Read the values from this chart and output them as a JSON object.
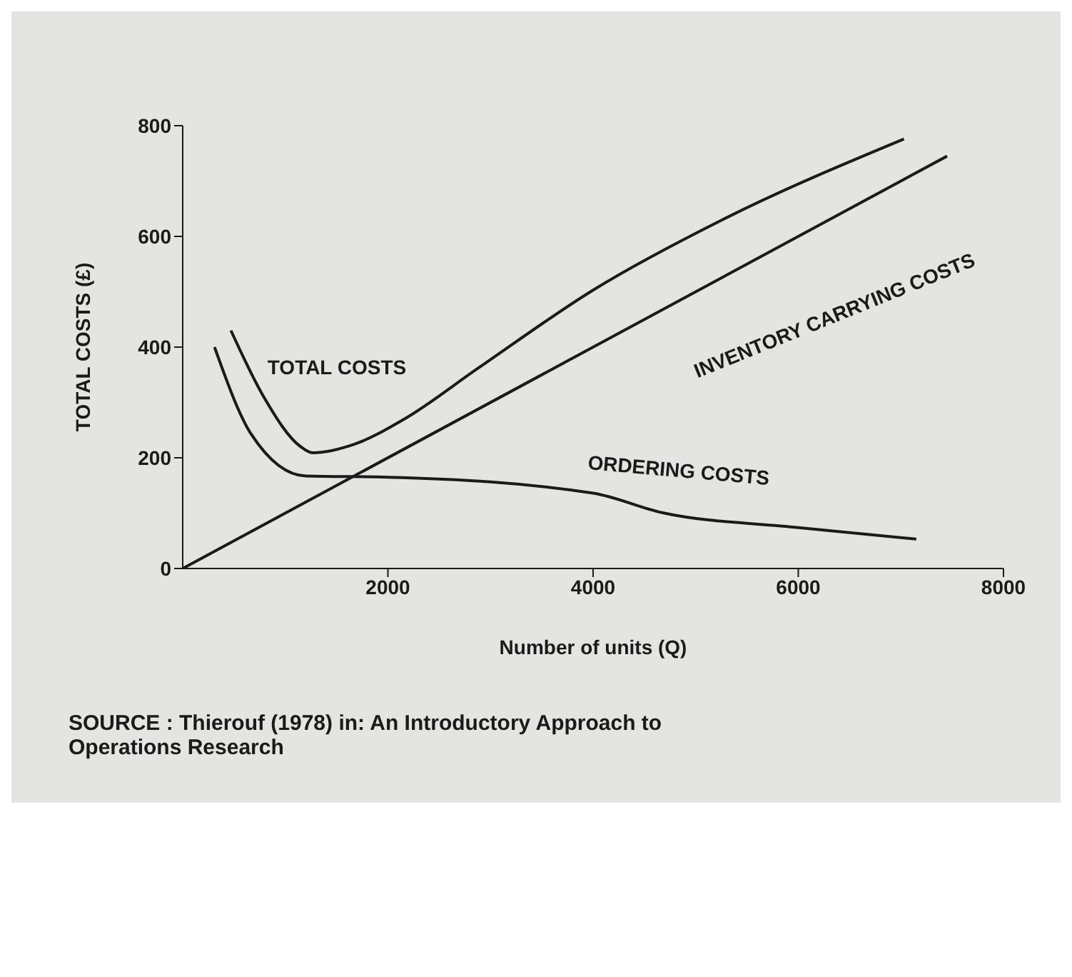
{
  "chart_data": {
    "type": "line",
    "xlabel": "Number of units (Q)",
    "ylabel": "TOTAL COSTS (£)",
    "xlim": [
      0,
      8000
    ],
    "ylim": [
      0,
      800
    ],
    "xticks": [
      2000,
      4000,
      6000,
      8000
    ],
    "yticks": [
      0,
      200,
      400,
      600,
      800
    ],
    "grid": false,
    "legend": false,
    "marker": "none",
    "line_style": "solid",
    "series": [
      {
        "color": "#1a1a1a",
        "x": [
          0,
          7450
        ],
        "values": [
          0,
          745
        ]
      },
      {
        "color": "#1a1a1a",
        "x": [
          310,
          670,
          1200,
          2000,
          4000,
          4670,
          6000,
          7150
        ],
        "values": [
          400,
          242,
          167,
          165,
          136,
          101,
          74,
          53
        ]
      },
      {
        "color": "#1a1a1a",
        "x": [
          470,
          790,
          1150,
          1265,
          1680,
          2160,
          2880,
          4000,
          5270,
          7030
        ],
        "values": [
          430,
          310,
          220,
          209,
          225,
          270,
          362,
          503,
          631,
          776
        ]
      }
    ],
    "annotations": [
      {
        "text": "TOTAL COSTS",
        "x": 1800,
        "y": 235
      },
      {
        "text": "INVENTORY CARRYING COSTS",
        "x": 4600,
        "y": 460
      },
      {
        "text": "ORDERING COSTS",
        "x": 4500,
        "y": 115
      },
      "SOURCE : Thierouf (1978) in: An Introductory Approach to Operations Research"
    ]
  }
}
